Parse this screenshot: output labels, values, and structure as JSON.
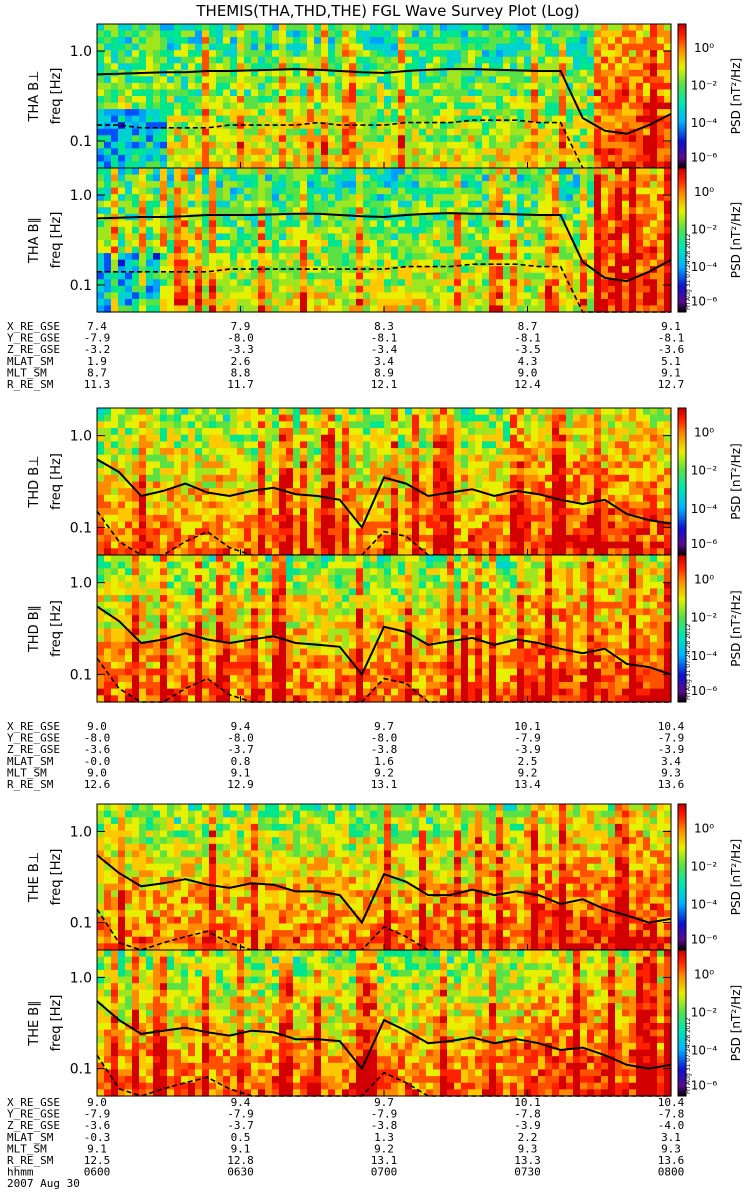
{
  "title": "THEMIS(THA,THD,THE) FGL Wave Survey Plot (Log)",
  "colorbar": {
    "label": "PSD [nT²/Hz]",
    "ticks": [
      "10⁰",
      "10⁻²",
      "10⁻⁴",
      "10⁻⁶"
    ],
    "stamp": "Fri Aug 31 07:24:28 2012"
  },
  "chart_data": {
    "type": "heatmap",
    "date": "2007 Aug 30",
    "x_axis": {
      "label": "hhmm",
      "ticks": [
        "0600",
        "0630",
        "0700",
        "0730",
        "0800"
      ]
    },
    "y_axis": {
      "label": "freq [Hz]",
      "scale": "log",
      "ticks": [
        "1.0",
        "0.1"
      ],
      "range_hz": [
        0.05,
        2.0
      ]
    },
    "colorbar_scale": {
      "unit": "nT²/Hz",
      "log_range": [
        -7,
        1
      ]
    },
    "spacecraft": [
      {
        "name": "THA",
        "panels": [
          {
            "label": "THA B⊥",
            "solid": [
              0.55,
              0.56,
              0.57,
              0.58,
              0.58,
              0.6,
              0.6,
              0.61,
              0.62,
              0.63,
              0.62,
              0.6,
              0.58,
              0.57,
              0.6,
              0.62,
              0.63,
              0.63,
              0.62,
              0.61,
              0.6,
              0.6,
              0.18,
              0.13,
              0.12,
              0.15,
              0.2
            ],
            "dashed": [
              0.15,
              0.15,
              0.14,
              0.14,
              0.14,
              0.14,
              0.15,
              0.15,
              0.15,
              0.15,
              0.16,
              0.15,
              0.15,
              0.15,
              0.16,
              0.16,
              0.16,
              0.17,
              0.17,
              0.17,
              0.16,
              0.16,
              0.05,
              0.05,
              0.05,
              0.05,
              0.05
            ]
          },
          {
            "label": "THA B∥",
            "solid": [
              0.55,
              0.56,
              0.57,
              0.57,
              0.58,
              0.6,
              0.6,
              0.6,
              0.61,
              0.62,
              0.62,
              0.6,
              0.58,
              0.57,
              0.6,
              0.62,
              0.63,
              0.62,
              0.62,
              0.61,
              0.6,
              0.6,
              0.18,
              0.12,
              0.11,
              0.14,
              0.19
            ],
            "dashed": [
              0.14,
              0.14,
              0.14,
              0.14,
              0.14,
              0.14,
              0.15,
              0.15,
              0.15,
              0.15,
              0.15,
              0.15,
              0.15,
              0.15,
              0.16,
              0.16,
              0.16,
              0.17,
              0.17,
              0.17,
              0.16,
              0.16,
              0.05,
              0.05,
              0.05,
              0.05,
              0.05
            ]
          }
        ],
        "ephemeris": [
          {
            "name": "X_RE_GSE",
            "values": [
              "7.4",
              "7.9",
              "8.3",
              "8.7",
              "9.1"
            ]
          },
          {
            "name": "Y_RE_GSE",
            "values": [
              "-7.9",
              "-8.0",
              "-8.1",
              "-8.1",
              "-8.1"
            ]
          },
          {
            "name": "Z_RE_GSE",
            "values": [
              "-3.2",
              "-3.3",
              "-3.4",
              "-3.5",
              "-3.6"
            ]
          },
          {
            "name": "MLAT_SM",
            "values": [
              "1.9",
              "2.6",
              "3.4",
              "4.3",
              "5.1"
            ]
          },
          {
            "name": "MLT_SM",
            "values": [
              "8.7",
              "8.8",
              "8.9",
              "9.0",
              "9.1"
            ]
          },
          {
            "name": "R_RE_SM",
            "values": [
              "11.3",
              "11.7",
              "12.1",
              "12.4",
              "12.7"
            ]
          }
        ]
      },
      {
        "name": "THD",
        "panels": [
          {
            "label": "THD B⊥",
            "solid": [
              0.55,
              0.4,
              0.22,
              0.25,
              0.3,
              0.24,
              0.22,
              0.25,
              0.27,
              0.23,
              0.22,
              0.2,
              0.1,
              0.35,
              0.3,
              0.22,
              0.24,
              0.26,
              0.22,
              0.25,
              0.23,
              0.2,
              0.18,
              0.2,
              0.14,
              0.12,
              0.11
            ],
            "dashed": [
              0.15,
              0.07,
              0.05,
              0.05,
              0.07,
              0.09,
              0.06,
              0.05,
              0.05,
              0.05,
              0.05,
              0.05,
              0.05,
              0.09,
              0.08,
              0.05,
              0.05,
              0.05,
              0.05,
              0.05,
              0.05,
              0.05,
              0.05,
              0.05,
              0.05,
              0.05,
              0.05
            ]
          },
          {
            "label": "THD B∥",
            "solid": [
              0.55,
              0.38,
              0.22,
              0.24,
              0.28,
              0.24,
              0.22,
              0.24,
              0.26,
              0.22,
              0.21,
              0.2,
              0.1,
              0.33,
              0.29,
              0.21,
              0.23,
              0.25,
              0.21,
              0.24,
              0.22,
              0.19,
              0.17,
              0.19,
              0.13,
              0.12,
              0.1
            ],
            "dashed": [
              0.15,
              0.07,
              0.05,
              0.05,
              0.07,
              0.09,
              0.06,
              0.05,
              0.05,
              0.05,
              0.05,
              0.05,
              0.05,
              0.09,
              0.08,
              0.05,
              0.05,
              0.05,
              0.05,
              0.05,
              0.05,
              0.05,
              0.05,
              0.05,
              0.05,
              0.05,
              0.05
            ]
          }
        ],
        "ephemeris": [
          {
            "name": "X_RE_GSE",
            "values": [
              "9.0",
              "9.4",
              "9.7",
              "10.1",
              "10.4"
            ]
          },
          {
            "name": "Y_RE_GSE",
            "values": [
              "-8.0",
              "-8.0",
              "-8.0",
              "-7.9",
              "-7.9"
            ]
          },
          {
            "name": "Z_RE_GSE",
            "values": [
              "-3.6",
              "-3.7",
              "-3.8",
              "-3.9",
              "-3.9"
            ]
          },
          {
            "name": "MLAT_SM",
            "values": [
              "-0.0",
              "0.8",
              "1.6",
              "2.5",
              "3.4"
            ]
          },
          {
            "name": "MLT_SM",
            "values": [
              "9.0",
              "9.1",
              "9.2",
              "9.2",
              "9.3"
            ]
          },
          {
            "name": "R_RE_SM",
            "values": [
              "12.6",
              "12.9",
              "13.1",
              "13.4",
              "13.6"
            ]
          }
        ]
      },
      {
        "name": "THE",
        "panels": [
          {
            "label": "THE B⊥",
            "solid": [
              0.55,
              0.35,
              0.25,
              0.27,
              0.3,
              0.26,
              0.24,
              0.27,
              0.26,
              0.22,
              0.22,
              0.2,
              0.1,
              0.34,
              0.28,
              0.2,
              0.2,
              0.23,
              0.2,
              0.22,
              0.2,
              0.16,
              0.18,
              0.14,
              0.12,
              0.1,
              0.11
            ],
            "dashed": [
              0.14,
              0.06,
              0.05,
              0.06,
              0.07,
              0.08,
              0.06,
              0.05,
              0.05,
              0.05,
              0.05,
              0.05,
              0.05,
              0.09,
              0.07,
              0.05,
              0.05,
              0.05,
              0.05,
              0.05,
              0.05,
              0.05,
              0.05,
              0.05,
              0.05,
              0.05,
              0.05
            ]
          },
          {
            "label": "THE B∥",
            "solid": [
              0.55,
              0.34,
              0.24,
              0.26,
              0.28,
              0.25,
              0.23,
              0.26,
              0.25,
              0.21,
              0.21,
              0.2,
              0.1,
              0.34,
              0.26,
              0.19,
              0.2,
              0.22,
              0.19,
              0.21,
              0.19,
              0.16,
              0.17,
              0.14,
              0.11,
              0.1,
              0.11
            ],
            "dashed": [
              0.14,
              0.06,
              0.05,
              0.06,
              0.07,
              0.08,
              0.06,
              0.05,
              0.05,
              0.05,
              0.05,
              0.05,
              0.05,
              0.09,
              0.07,
              0.05,
              0.05,
              0.05,
              0.05,
              0.05,
              0.05,
              0.05,
              0.05,
              0.05,
              0.05,
              0.05,
              0.05
            ]
          }
        ],
        "ephemeris": [
          {
            "name": "X_RE_GSE",
            "values": [
              "9.0",
              "9.4",
              "9.7",
              "10.1",
              "10.4"
            ]
          },
          {
            "name": "Y_RE_GSE",
            "values": [
              "-7.9",
              "-7.9",
              "-7.9",
              "-7.8",
              "-7.8"
            ]
          },
          {
            "name": "Z_RE_GSE",
            "values": [
              "-3.6",
              "-3.7",
              "-3.8",
              "-3.9",
              "-4.0"
            ]
          },
          {
            "name": "MLAT_SM",
            "values": [
              "-0.3",
              "0.5",
              "1.3",
              "2.2",
              "3.1"
            ]
          },
          {
            "name": "MLT_SM",
            "values": [
              "9.1",
              "9.1",
              "9.2",
              "9.3",
              "9.3"
            ]
          },
          {
            "name": "R_RE_SM",
            "values": [
              "12.5",
              "12.8",
              "13.1",
              "13.3",
              "13.6"
            ]
          }
        ]
      }
    ]
  }
}
